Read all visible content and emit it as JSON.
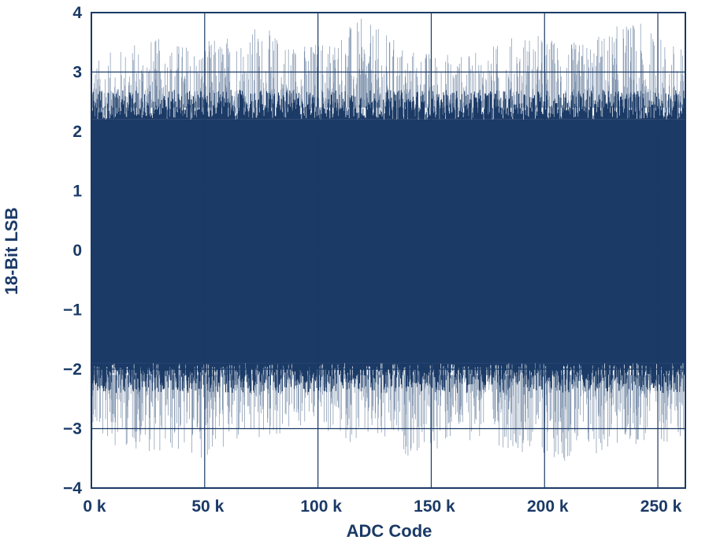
{
  "chart_data": {
    "type": "line",
    "title": "",
    "xlabel": "ADC Code",
    "ylabel": "18-Bit LSB",
    "xlim": [
      0,
      262143
    ],
    "ylim": [
      -4,
      4
    ],
    "x_ticks": [
      0,
      50000,
      100000,
      150000,
      200000,
      250000
    ],
    "x_tick_labels": [
      "0 k",
      "50 k",
      "100 k",
      "150 k",
      "200 k",
      "250 k"
    ],
    "y_ticks": [
      4,
      3,
      2,
      1,
      0,
      -1,
      -2,
      -3,
      -4
    ],
    "y_tick_labels": [
      "4",
      "3",
      "2",
      "1",
      "0",
      "−1",
      "−2",
      "−3",
      "−4"
    ],
    "grid": true,
    "series": [
      {
        "name": "",
        "color": "#1b3a66",
        "band_color": "#1b3a66",
        "spike_color": "#7f93ad",
        "dense_band": {
          "min": -1.9,
          "max": 2.2
        },
        "envelope_max": [
          3.2,
          3.6,
          3.5,
          3.8,
          3.5,
          3.9,
          3.4,
          3.3,
          3.7,
          3.5,
          3.9,
          3.4
        ],
        "envelope_min": [
          -3.2,
          -3.4,
          -3.5,
          -3.3,
          -3.0,
          -3.3,
          -3.5,
          -3.2,
          -3.4,
          -3.6,
          -3.3,
          -3.2
        ]
      }
    ]
  }
}
